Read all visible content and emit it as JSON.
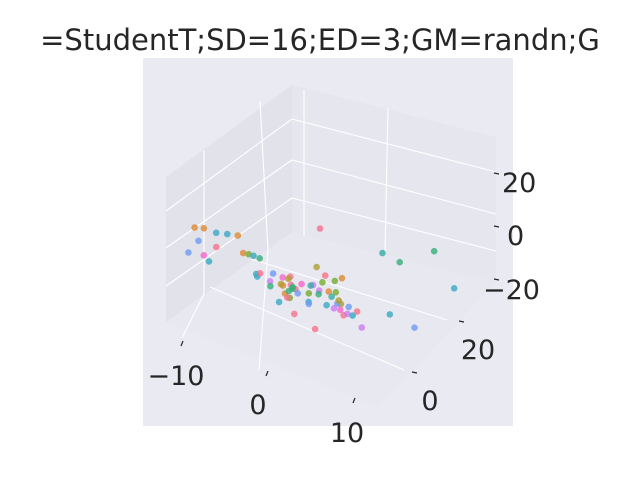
{
  "chart_data": {
    "type": "scatter",
    "title": "=StudentT;SD=16;ED=3;GM=randn;G",
    "projection": "3d",
    "style": "seaborn-darkgrid",
    "grid": true,
    "background_color": "#eaeaf2",
    "pane_color": "#e6e6ee",
    "grid_color": "#ffffff",
    "x_ticks": [
      "−10",
      "0",
      "10"
    ],
    "y_ticks": [
      "0",
      "20"
    ],
    "z_ticks": [
      "20",
      "0",
      "−20"
    ],
    "xlim": [
      -15,
      12
    ],
    "ylim": [
      -12,
      35
    ],
    "zlim": [
      -30,
      35
    ],
    "colors": [
      "#f77189",
      "#dc8932",
      "#ae9d31",
      "#77ab31",
      "#33b07a",
      "#36ada4",
      "#38a9c5",
      "#6e9bf4",
      "#cc7af4",
      "#f565cc"
    ],
    "points": [
      {
        "x": -13.1,
        "y": 0.3,
        "z": 0.3,
        "c": 1
      },
      {
        "x": -12.3,
        "y": 0.9,
        "z": 0.6,
        "c": 1
      },
      {
        "x": -11.2,
        "y": 1.6,
        "z": -0.4,
        "c": 6
      },
      {
        "x": -10.3,
        "y": 2.4,
        "z": -0.3,
        "c": 6
      },
      {
        "x": -9.6,
        "y": 3.5,
        "z": -0.8,
        "c": 1
      },
      {
        "x": -12.4,
        "y": -0.2,
        "z": -4.2,
        "c": 7
      },
      {
        "x": -12.2,
        "y": -3.1,
        "z": -7.1,
        "c": 7
      },
      {
        "x": -10.5,
        "y": -2.9,
        "z": -6.2,
        "c": 9
      },
      {
        "x": -10.1,
        "y": -0.7,
        "z": -3.6,
        "c": 0
      },
      {
        "x": -9.9,
        "y": -2.9,
        "z": -8.1,
        "c": 6
      },
      {
        "x": -7.4,
        "y": 0.2,
        "z": -3.3,
        "c": 1
      },
      {
        "x": -7.0,
        "y": 0.7,
        "z": -3.6,
        "c": 3
      },
      {
        "x": -6.0,
        "y": 1.3,
        "z": -4.5,
        "c": 4
      },
      {
        "x": -6.3,
        "y": 0.4,
        "z": -3.2,
        "c": 6
      },
      {
        "x": -4.5,
        "y": -2.7,
        "z": -6.6,
        "c": 6
      },
      {
        "x": -4.0,
        "y": -3.5,
        "z": -6.6,
        "c": 6
      },
      {
        "x": -3.4,
        "y": -0.9,
        "z": -6.2,
        "c": 7
      },
      {
        "x": -4.1,
        "y": -2.6,
        "z": -5.9,
        "c": 0
      },
      {
        "x": -2.5,
        "y": -3.5,
        "z": -6.7,
        "c": 8
      },
      {
        "x": -1.4,
        "y": -0.9,
        "z": -5.0,
        "c": 0
      },
      {
        "x": -1.3,
        "y": -2.9,
        "z": -7.4,
        "c": 1
      },
      {
        "x": -1.2,
        "y": -3.6,
        "z": -6.1,
        "c": 2
      },
      {
        "x": -0.3,
        "y": -4.5,
        "z": -8.5,
        "c": 1
      },
      {
        "x": 0.3,
        "y": -3.2,
        "z": -6.6,
        "c": 0
      },
      {
        "x": 0.9,
        "y": -3.9,
        "z": -7.2,
        "c": 7
      },
      {
        "x": 0.4,
        "y": -1.9,
        "z": -5.2,
        "c": 9
      },
      {
        "x": 1.9,
        "y": -3.3,
        "z": -6.3,
        "c": 3
      },
      {
        "x": 2.2,
        "y": -1.4,
        "z": -6.0,
        "c": 8
      },
      {
        "x": 2.7,
        "y": -2.6,
        "z": -6.1,
        "c": 4
      },
      {
        "x": 3.4,
        "y": -1.6,
        "z": -4.7,
        "c": 1
      },
      {
        "x": 3.7,
        "y": -0.5,
        "z": -5.4,
        "c": 3
      },
      {
        "x": 3.6,
        "y": -1.3,
        "z": -6.9,
        "c": 5
      },
      {
        "x": 5.2,
        "y": -2.4,
        "z": -7.3,
        "c": 2
      },
      {
        "x": 4.4,
        "y": -4.2,
        "z": -7.6,
        "c": 6
      },
      {
        "x": 5.4,
        "y": -3.7,
        "z": -6.0,
        "c": 7
      },
      {
        "x": 5.5,
        "y": -4.7,
        "z": -7.2,
        "c": 8
      },
      {
        "x": 5.9,
        "y": -4.0,
        "z": -7.8,
        "c": 9
      },
      {
        "x": 6.3,
        "y": -2.8,
        "z": -6.8,
        "c": 7
      },
      {
        "x": 6.9,
        "y": -5.3,
        "z": -8.0,
        "c": 0
      },
      {
        "x": 7.1,
        "y": -4.8,
        "z": -7.4,
        "c": 8
      },
      {
        "x": 0.2,
        "y": -4.1,
        "z": -4.3,
        "c": 0
      },
      {
        "x": -0.3,
        "y": -2.7,
        "z": -7.6,
        "c": 4
      },
      {
        "x": 1.1,
        "y": -0.6,
        "z": -5.6,
        "c": 8
      },
      {
        "x": 0.5,
        "y": -5.0,
        "z": -9.0,
        "c": 3
      },
      {
        "x": -0.9,
        "y": -2.4,
        "z": -4.2,
        "c": 2
      },
      {
        "x": 2.5,
        "y": -4.6,
        "z": -8.4,
        "c": 6
      },
      {
        "x": 1.4,
        "y": -1.8,
        "z": -4.6,
        "c": 5
      },
      {
        "x": -2.0,
        "y": -1.5,
        "z": -5.7,
        "c": 9
      },
      {
        "x": 4.8,
        "y": -2.1,
        "z": -6.5,
        "c": 2
      },
      {
        "x": 3.0,
        "y": -5.6,
        "z": -7.9,
        "c": 7
      },
      {
        "x": -1.0,
        "y": -2.1,
        "z": -9.9,
        "c": 4
      },
      {
        "x": -0.6,
        "y": -5.3,
        "z": -12.0,
        "c": 6
      },
      {
        "x": -0.6,
        "y": -2.0,
        "z": -7.7,
        "c": 4
      },
      {
        "x": -3.0,
        "y": -2.4,
        "z": -10.2,
        "c": 4
      },
      {
        "x": -0.3,
        "y": -3.9,
        "z": -10.6,
        "c": 0
      },
      {
        "x": 2.1,
        "y": -0.4,
        "z": -3.2,
        "c": 3
      },
      {
        "x": 3.4,
        "y": -0.1,
        "z": -1.1,
        "c": 3
      },
      {
        "x": 1.9,
        "y": 0.7,
        "z": -1.3,
        "c": 0
      },
      {
        "x": 3.8,
        "y": 0.8,
        "z": 0.0,
        "c": 1
      },
      {
        "x": 0.9,
        "y": 0.7,
        "z": 1.1,
        "c": 2
      },
      {
        "x": 7.8,
        "y": -3.9,
        "z": -6.1,
        "c": 0
      },
      {
        "x": 2.1,
        "y": -1.0,
        "z": 20.6,
        "c": 0
      },
      {
        "x": 6.7,
        "y": 4.6,
        "z": 12.1,
        "c": 5
      },
      {
        "x": 10.0,
        "y": 10.3,
        "z": 13.4,
        "c": 4
      },
      {
        "x": 6.8,
        "y": 8.6,
        "z": 5.6,
        "c": 4
      },
      {
        "x": 11.7,
        "y": 11.6,
        "z": -1.4,
        "c": 6
      },
      {
        "x": 9.5,
        "y": 0.5,
        "z": -8.1,
        "c": 6
      },
      {
        "x": 7.9,
        "y": -5.2,
        "z": -6.9,
        "c": 6
      },
      {
        "x": 12.0,
        "y": 1.3,
        "z": -11.2,
        "c": 7
      },
      {
        "x": 7.3,
        "y": -1.7,
        "z": -15.2,
        "c": 8
      },
      {
        "x": 3.2,
        "y": -4.5,
        "z": -19.3,
        "c": 0
      },
      {
        "x": 1.6,
        "y": -6.2,
        "z": -13.7,
        "c": 0
      }
    ]
  }
}
